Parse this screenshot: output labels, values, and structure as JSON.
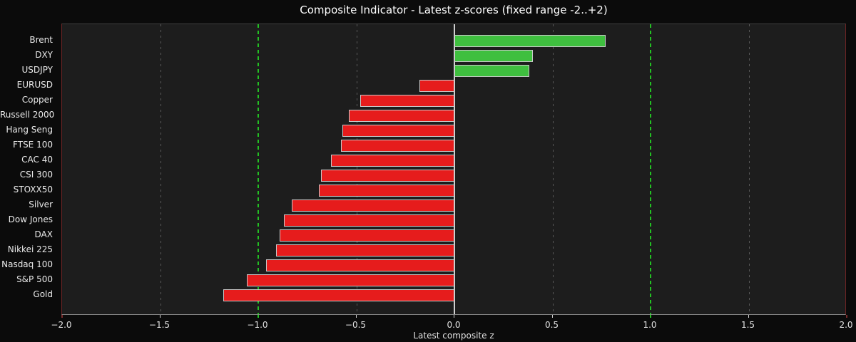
{
  "figure": {
    "title": "Composite Indicator - Latest z-scores (fixed range -2..+2)",
    "xlabel": "Latest composite z"
  },
  "chart_data": {
    "type": "bar",
    "orientation": "horizontal",
    "title": "Composite Indicator - Latest z-scores (fixed range -2..+2)",
    "xlabel": "Latest composite z",
    "ylabel": "",
    "xlim": [
      -2.0,
      2.0
    ],
    "grid": "vertical-dashed",
    "legend": "none",
    "categories": [
      "Brent",
      "DXY",
      "USDJPY",
      "EURUSD",
      "Copper",
      "Russell 2000",
      "Hang Seng",
      "FTSE 100",
      "CAC 40",
      "CSI 300",
      "STOXX50",
      "Silver",
      "Dow Jones",
      "DAX",
      "Nikkei 225",
      "Nasdaq 100",
      "S&P 500",
      "Gold"
    ],
    "values": [
      0.77,
      0.4,
      0.38,
      -0.18,
      -0.48,
      -0.54,
      -0.57,
      -0.58,
      -0.63,
      -0.68,
      -0.69,
      -0.83,
      -0.87,
      -0.89,
      -0.91,
      -0.96,
      -1.06,
      -1.18
    ],
    "xticks": [
      -2.0,
      -1.5,
      -1.0,
      -0.5,
      0.0,
      0.5,
      1.0,
      1.5,
      2.0
    ],
    "xtick_labels": [
      "−2.0",
      "−1.5",
      "−1.0",
      "−0.5",
      "0.0",
      "0.5",
      "1.0",
      "1.5",
      "2.0"
    ],
    "threshold_lines": [
      -1.0,
      1.0
    ],
    "dashed_gridlines": [
      -1.5,
      -0.5,
      0.5,
      1.5
    ],
    "zero_line": 0.0,
    "colors": {
      "positive_bar": "#3fbf3f",
      "negative_bar": "#e61c1c",
      "bar_edge": "#c9c9c9",
      "threshold_line": "#23c123",
      "gridline": "#585858",
      "zero_line": "#cfcfcf",
      "plot_background": "#1d1d1d",
      "figure_background": "#0b0b0b",
      "text": "#eaeaea",
      "side_spine": "#6b2424"
    }
  }
}
